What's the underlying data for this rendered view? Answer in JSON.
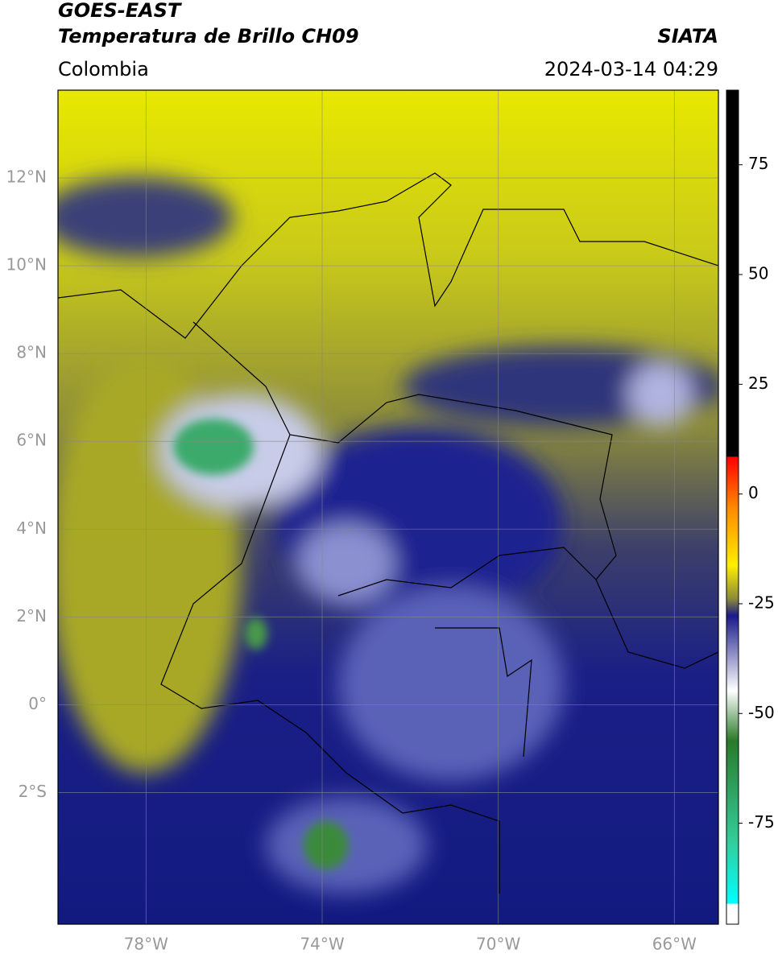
{
  "header": {
    "title_line1": "GOES-EAST",
    "title_line2": "Temperatura de Brillo CH09",
    "region": "Colombia",
    "source": "SIATA",
    "datetime": "2024-03-14 04:29"
  },
  "map": {
    "xlim": [
      -80,
      -65
    ],
    "ylim": [
      -5,
      14
    ],
    "xticks": [
      {
        "value": -78,
        "label": "78°W"
      },
      {
        "value": -74,
        "label": "74°W"
      },
      {
        "value": -70,
        "label": "70°W"
      },
      {
        "value": -66,
        "label": "66°W"
      }
    ],
    "yticks": [
      {
        "value": 12,
        "label": "12°N"
      },
      {
        "value": 10,
        "label": "10°N"
      },
      {
        "value": 8,
        "label": "8°N"
      },
      {
        "value": 6,
        "label": "6°N"
      },
      {
        "value": 4,
        "label": "4°N"
      },
      {
        "value": 2,
        "label": "2°N"
      },
      {
        "value": 0,
        "label": "0°"
      },
      {
        "value": -2,
        "label": "2°S"
      }
    ]
  },
  "colorbar": {
    "ylim": [
      -98,
      92
    ],
    "ticks": [
      75,
      50,
      25,
      0,
      -25,
      -50,
      -75
    ]
  }
}
